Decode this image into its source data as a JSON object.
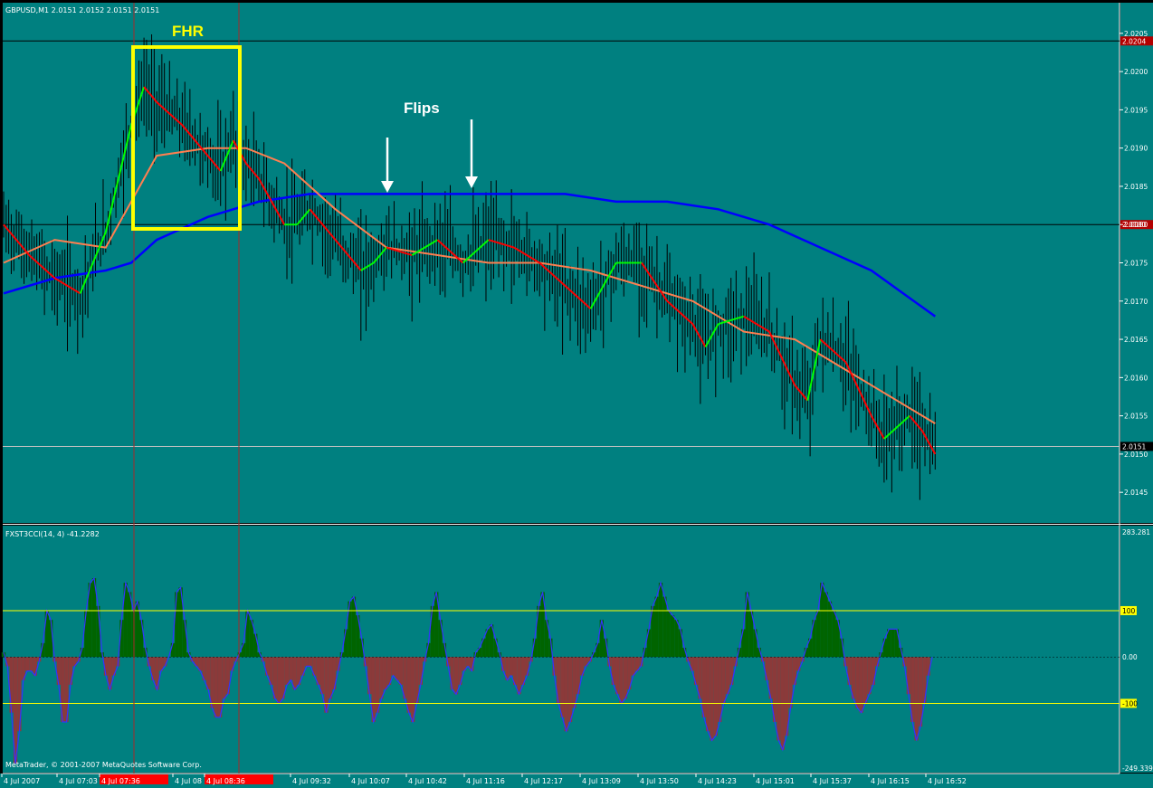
{
  "main_title": "GBPUSD,M1  2.0151 2.0152 2.0151 2.0151",
  "indicator_title": "FXST3CCI(14, 4) -41.2282",
  "copyright": "MetaTrader, © 2001-2007 MetaQuotes Software Corp.",
  "annotations": {
    "box_label": "FHR",
    "flips_label": "Flips"
  },
  "colors": {
    "background": "#008080",
    "bull": "#00ff00",
    "bear": "#ff0000",
    "fast_ma": "#ff7f50",
    "slow_ma": "#0000ff",
    "level": "#ffff00",
    "hist_up": "#006400",
    "hist_down": "#8b3a3a",
    "cci_line": "#3333ff"
  },
  "chart_data": [
    {
      "type": "line",
      "ylim": [
        2.0141,
        2.0209
      ],
      "y_ticks": [
        "2.0205",
        "2.0200",
        "2.0195",
        "2.0190",
        "2.0185",
        "2.0180",
        "2.0175",
        "2.0170",
        "2.0165",
        "2.0160",
        "2.0155",
        "2.0150",
        "2.0145"
      ],
      "y_tick_values": [
        2.0205,
        2.02,
        2.0195,
        2.019,
        2.0185,
        2.018,
        2.0175,
        2.017,
        2.0165,
        2.016,
        2.0155,
        2.015,
        2.0145
      ],
      "horizontal_lines": [
        {
          "value": 2.0204,
          "label": "2.0204",
          "label_color": "#b30000"
        },
        {
          "value": 2.018,
          "label": "2.0180",
          "label_color": "#b30000"
        },
        {
          "value": 2.0151,
          "label": "2.0151",
          "label_color": "#000000"
        }
      ],
      "series": [
        {
          "points": [
            [
              0,
              2.018
            ],
            [
              10,
              2.0176
            ],
            [
              20,
              2.0173
            ],
            [
              30,
              2.0171
            ],
            [
              40,
              2.0179
            ],
            [
              50,
              2.0193
            ],
            [
              55,
              2.0198
            ],
            [
              60,
              2.0196
            ],
            [
              70,
              2.0193
            ],
            [
              80,
              2.0189
            ],
            [
              85,
              2.0187
            ],
            [
              90,
              2.0191
            ],
            [
              95,
              2.0188
            ],
            [
              100,
              2.0186
            ],
            [
              110,
              2.018
            ],
            [
              115,
              2.018
            ],
            [
              120,
              2.0182
            ],
            [
              130,
              2.0178
            ],
            [
              140,
              2.0174
            ],
            [
              145,
              2.0175
            ],
            [
              150,
              2.0177
            ],
            [
              160,
              2.0176
            ],
            [
              170,
              2.0178
            ],
            [
              180,
              2.0175
            ],
            [
              190,
              2.0178
            ],
            [
              200,
              2.0177
            ],
            [
              210,
              2.0175
            ],
            [
              220,
              2.0172
            ],
            [
              230,
              2.0169
            ],
            [
              240,
              2.0175
            ],
            [
              250,
              2.0175
            ],
            [
              260,
              2.017
            ],
            [
              270,
              2.0167
            ],
            [
              275,
              2.0164
            ],
            [
              280,
              2.0167
            ],
            [
              290,
              2.0168
            ],
            [
              300,
              2.0166
            ],
            [
              310,
              2.0159
            ],
            [
              315,
              2.0157
            ],
            [
              320,
              2.0165
            ],
            [
              330,
              2.0162
            ],
            [
              340,
              2.0155
            ],
            [
              345,
              2.0152
            ],
            [
              355,
              2.0155
            ],
            [
              360,
              2.0153
            ],
            [
              365,
              2.015
            ]
          ]
        },
        {
          "points": [
            [
              0,
              2.0175
            ],
            [
              20,
              2.0178
            ],
            [
              40,
              2.0177
            ],
            [
              50,
              2.0183
            ],
            [
              60,
              2.0189
            ],
            [
              80,
              2.019
            ],
            [
              95,
              2.019
            ],
            [
              110,
              2.0188
            ],
            [
              130,
              2.0182
            ],
            [
              150,
              2.0177
            ],
            [
              170,
              2.0176
            ],
            [
              190,
              2.0175
            ],
            [
              200,
              2.0175
            ],
            [
              210,
              2.0175
            ],
            [
              230,
              2.0174
            ],
            [
              250,
              2.0172
            ],
            [
              270,
              2.017
            ],
            [
              290,
              2.0166
            ],
            [
              310,
              2.0165
            ],
            [
              330,
              2.0161
            ],
            [
              350,
              2.0157
            ],
            [
              365,
              2.0154
            ]
          ]
        },
        {
          "points": [
            [
              0,
              2.0171
            ],
            [
              20,
              2.0173
            ],
            [
              40,
              2.0174
            ],
            [
              50,
              2.0175
            ],
            [
              60,
              2.0178
            ],
            [
              80,
              2.0181
            ],
            [
              100,
              2.0183
            ],
            [
              120,
              2.0184
            ],
            [
              140,
              2.0184
            ],
            [
              160,
              2.0184
            ],
            [
              180,
              2.0184
            ],
            [
              200,
              2.0184
            ],
            [
              220,
              2.0184
            ],
            [
              240,
              2.0183
            ],
            [
              260,
              2.0183
            ],
            [
              280,
              2.0182
            ],
            [
              300,
              2.018
            ],
            [
              320,
              2.0177
            ],
            [
              340,
              2.0174
            ],
            [
              365,
              2.0168
            ]
          ]
        }
      ]
    },
    {
      "type": "bar",
      "ylim": [
        -249.339,
        283.281
      ],
      "y_ticks": [
        "283.281",
        "100",
        "0.00",
        "-100",
        "-249.339"
      ],
      "y_tick_values": [
        283.281,
        100,
        0,
        -100,
        -249.339
      ],
      "levels": [
        100,
        -100
      ],
      "values": [
        10,
        -20,
        -120,
        -230,
        -160,
        -50,
        -30,
        -30,
        -40,
        -10,
        30,
        100,
        80,
        -10,
        -60,
        -140,
        -140,
        -60,
        -20,
        -10,
        20,
        100,
        160,
        170,
        110,
        10,
        -40,
        -70,
        -40,
        -20,
        80,
        160,
        140,
        100,
        120,
        80,
        20,
        -20,
        -50,
        -70,
        -30,
        -20,
        0,
        30,
        140,
        150,
        80,
        10,
        -10,
        -20,
        -30,
        -50,
        -70,
        -110,
        -130,
        -130,
        -90,
        -80,
        -30,
        -10,
        10,
        30,
        100,
        80,
        50,
        10,
        -10,
        -40,
        -60,
        -90,
        -100,
        -90,
        -60,
        -50,
        -70,
        -60,
        -40,
        -20,
        -20,
        -40,
        -60,
        -80,
        -120,
        -90,
        -70,
        -30,
        10,
        60,
        120,
        130,
        90,
        40,
        -20,
        -80,
        -140,
        -120,
        -90,
        -70,
        -60,
        -40,
        -50,
        -60,
        -90,
        -120,
        -140,
        -100,
        -60,
        -10,
        30,
        110,
        140,
        80,
        30,
        -20,
        -70,
        -80,
        -60,
        -30,
        -20,
        -30,
        10,
        20,
        40,
        60,
        70,
        40,
        10,
        -30,
        -50,
        -40,
        -60,
        -80,
        -60,
        -40,
        -10,
        40,
        110,
        140,
        80,
        40,
        -40,
        -100,
        -130,
        -160,
        -140,
        -110,
        -80,
        -40,
        -20,
        -10,
        10,
        30,
        80,
        40,
        -20,
        -60,
        -80,
        -100,
        -90,
        -70,
        -40,
        -30,
        -20,
        20,
        60,
        110,
        130,
        160,
        130,
        100,
        90,
        80,
        60,
        20,
        -10,
        -30,
        -60,
        -90,
        -130,
        -160,
        -180,
        -170,
        -140,
        -100,
        -80,
        -60,
        -20,
        20,
        60,
        140,
        100,
        60,
        20,
        -10,
        -50,
        -90,
        -140,
        -180,
        -200,
        -170,
        -110,
        -60,
        -30,
        -10,
        20,
        40,
        80,
        100,
        160,
        140,
        120,
        100,
        80,
        40,
        -20,
        -60,
        -90,
        -110,
        -120,
        -100,
        -80,
        -60,
        -20,
        10,
        40,
        60,
        60,
        60,
        20,
        -20,
        -80,
        -140,
        -180,
        -150,
        -100,
        -40,
        0
      ]
    }
  ],
  "x_axis": {
    "labels": [
      "4 Jul 2007",
      "4 Jul 07:03",
      "4 Jul 07:36",
      "4 Jul 08",
      "4 Jul 08:36",
      "4 Jul 09:32",
      "4 Jul 10:07",
      "4 Jul 10:42",
      "4 Jul 11:16",
      "4 Jul 12:17",
      "4 Jul 13:09",
      "4 Jul 13:50",
      "4 Jul 14:23",
      "4 Jul 15:01",
      "4 Jul 15:37",
      "4 Jul 16:15",
      "4 Jul 16:52"
    ],
    "highlighted": [
      2,
      4
    ]
  }
}
